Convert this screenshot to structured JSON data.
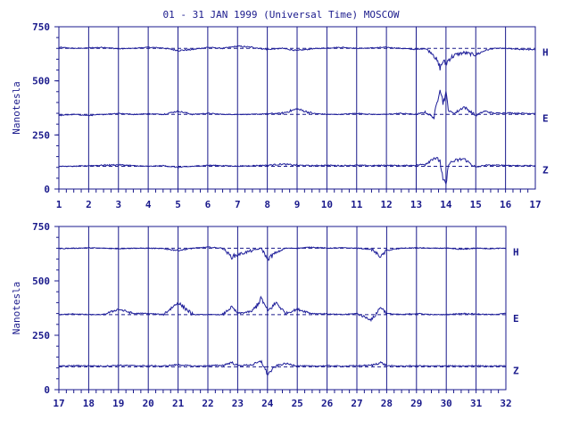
{
  "title": "01 - 31 JAN 1999 (Universal Time) MOSCOW",
  "colors": {
    "ink": "#1a1a8c",
    "trace": "#1f1f9a",
    "background": "#ffffff"
  },
  "chart_data": [
    {
      "type": "line",
      "panel": "top",
      "ylabel": "Nanotesla",
      "ylim": [
        0,
        750
      ],
      "yticks": [
        "0",
        "250",
        "500",
        "750"
      ],
      "xlim": [
        1,
        17
      ],
      "xticks": [
        "1",
        "2",
        "3",
        "4",
        "5",
        "6",
        "7",
        "8",
        "9",
        "10",
        "11",
        "12",
        "13",
        "14",
        "15",
        "16",
        "17"
      ],
      "grid": "vertical lines at each day",
      "series": [
        {
          "name": "H",
          "baseline": 650,
          "x": [
            1,
            1.5,
            2,
            2.5,
            3,
            3.5,
            4,
            4.5,
            5,
            5.5,
            6,
            6.5,
            7,
            7.5,
            8,
            8.5,
            9,
            9.5,
            10,
            10.5,
            11,
            11.5,
            12,
            12.5,
            13,
            13.3,
            13.6,
            13.8,
            13.9,
            14,
            14.1,
            14.3,
            14.6,
            15,
            15.3,
            15.6,
            16,
            16.5,
            17
          ],
          "y": [
            655,
            650,
            652,
            655,
            648,
            650,
            655,
            652,
            640,
            645,
            655,
            650,
            660,
            655,
            645,
            650,
            640,
            648,
            652,
            655,
            650,
            652,
            655,
            650,
            645,
            650,
            620,
            560,
            590,
            580,
            600,
            620,
            630,
            620,
            640,
            650,
            650,
            645,
            645
          ]
        },
        {
          "name": "E",
          "baseline": 345,
          "x": [
            1,
            1.5,
            2,
            2.5,
            3,
            3.5,
            4,
            4.5,
            5,
            5.5,
            6,
            6.5,
            7,
            7.5,
            8,
            8.5,
            9,
            9.5,
            10,
            10.5,
            11,
            11.5,
            12,
            12.5,
            13,
            13.3,
            13.6,
            13.8,
            13.9,
            14,
            14.1,
            14.3,
            14.6,
            15,
            15.3,
            15.6,
            16,
            16.5,
            17
          ],
          "y": [
            340,
            345,
            340,
            345,
            350,
            345,
            348,
            345,
            360,
            345,
            350,
            345,
            345,
            345,
            348,
            350,
            370,
            350,
            345,
            345,
            350,
            345,
            345,
            350,
            345,
            355,
            330,
            470,
            400,
            440,
            360,
            350,
            380,
            340,
            360,
            350,
            352,
            350,
            350
          ]
        },
        {
          "name": "Z",
          "baseline": 105,
          "x": [
            1,
            1.5,
            2,
            2.5,
            3,
            3.5,
            4,
            4.5,
            5,
            5.5,
            6,
            6.5,
            7,
            7.5,
            8,
            8.5,
            9,
            9.5,
            10,
            10.5,
            11,
            11.5,
            12,
            12.5,
            13,
            13.3,
            13.6,
            13.8,
            13.9,
            14,
            14.1,
            14.3,
            14.6,
            15,
            15.3,
            15.6,
            16,
            16.5,
            17
          ],
          "y": [
            105,
            105,
            108,
            110,
            112,
            108,
            105,
            108,
            100,
            105,
            110,
            108,
            106,
            108,
            110,
            115,
            110,
            108,
            110,
            108,
            110,
            108,
            110,
            108,
            110,
            115,
            145,
            130,
            40,
            20,
            120,
            130,
            140,
            100,
            110,
            110,
            110,
            108,
            108
          ]
        }
      ]
    },
    {
      "type": "line",
      "panel": "bottom",
      "ylabel": "Nanotesla",
      "ylim": [
        0,
        750
      ],
      "yticks": [
        "0",
        "250",
        "500",
        "750"
      ],
      "xlim": [
        17,
        32
      ],
      "xticks": [
        "17",
        "18",
        "19",
        "20",
        "21",
        "22",
        "23",
        "24",
        "25",
        "26",
        "27",
        "28",
        "29",
        "30",
        "31",
        "32"
      ],
      "grid": "vertical lines at each day",
      "series": [
        {
          "name": "H",
          "baseline": 650,
          "x": [
            17,
            17.5,
            18,
            18.5,
            19,
            19.5,
            20,
            20.5,
            21,
            21.5,
            22,
            22.5,
            22.8,
            23,
            23.5,
            23.8,
            24,
            24.3,
            24.6,
            25,
            25.5,
            26,
            26.5,
            27,
            27.5,
            27.8,
            28,
            28.5,
            29,
            29.5,
            30,
            30.5,
            31,
            31.5,
            32
          ],
          "y": [
            648,
            650,
            652,
            650,
            648,
            650,
            650,
            648,
            640,
            650,
            655,
            650,
            610,
            620,
            640,
            650,
            600,
            630,
            650,
            650,
            655,
            650,
            652,
            650,
            645,
            610,
            640,
            650,
            652,
            650,
            650,
            645,
            650,
            648,
            650
          ]
        },
        {
          "name": "E",
          "baseline": 345,
          "x": [
            17,
            17.5,
            18,
            18.5,
            19,
            19.5,
            20,
            20.5,
            21,
            21.5,
            22,
            22.5,
            22.8,
            23,
            23.5,
            23.8,
            24,
            24.3,
            24.6,
            25,
            25.5,
            26,
            26.5,
            27,
            27.5,
            27.8,
            28,
            28.5,
            29,
            29.5,
            30,
            30.5,
            31,
            31.5,
            32
          ],
          "y": [
            345,
            348,
            345,
            345,
            370,
            350,
            350,
            345,
            400,
            345,
            345,
            345,
            380,
            350,
            360,
            420,
            360,
            400,
            350,
            370,
            350,
            348,
            345,
            350,
            320,
            380,
            350,
            345,
            350,
            345,
            345,
            350,
            348,
            345,
            350
          ]
        },
        {
          "name": "Z",
          "baseline": 105,
          "x": [
            17,
            17.5,
            18,
            18.5,
            19,
            19.5,
            20,
            20.5,
            21,
            21.5,
            22,
            22.5,
            22.8,
            23,
            23.5,
            23.8,
            24,
            24.3,
            24.6,
            25,
            25.5,
            26,
            26.5,
            27,
            27.5,
            27.8,
            28,
            28.5,
            29,
            29.5,
            30,
            30.5,
            31,
            31.5,
            32
          ],
          "y": [
            108,
            110,
            110,
            108,
            112,
            110,
            110,
            108,
            115,
            108,
            110,
            112,
            125,
            110,
            115,
            130,
            70,
            110,
            120,
            110,
            108,
            110,
            108,
            110,
            112,
            125,
            110,
            108,
            110,
            108,
            110,
            108,
            110,
            108,
            110
          ]
        }
      ]
    }
  ]
}
